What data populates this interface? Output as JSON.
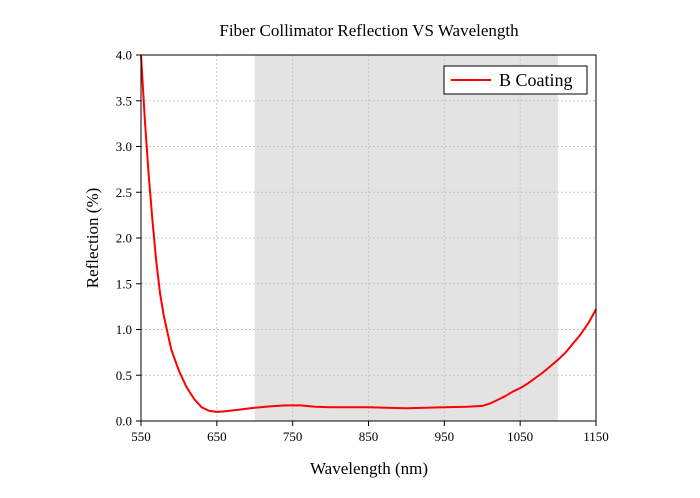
{
  "chart_data": {
    "type": "line",
    "title": "Fiber Collimator Reflection VS Wavelength",
    "xlabel": "Wavelength (nm)",
    "ylabel": "Reflection (%)",
    "xlim": [
      550,
      1150
    ],
    "ylim": [
      0,
      4.0
    ],
    "x_ticks": [
      550,
      650,
      750,
      850,
      950,
      1050,
      1150
    ],
    "y_ticks": [
      "0.0",
      "0.5",
      "1.0",
      "1.5",
      "2.0",
      "2.5",
      "3.0",
      "3.5",
      "4.0"
    ],
    "grid": true,
    "shaded_band": [
      700,
      1100
    ],
    "legend_position": "top-right",
    "series": [
      {
        "name": "B Coating",
        "color": "#ff0000",
        "x": [
          550,
          555,
          560,
          565,
          570,
          575,
          580,
          590,
          600,
          610,
          620,
          630,
          640,
          650,
          660,
          670,
          680,
          690,
          700,
          720,
          740,
          760,
          780,
          800,
          850,
          900,
          950,
          980,
          1000,
          1010,
          1020,
          1030,
          1040,
          1050,
          1060,
          1070,
          1080,
          1090,
          1100,
          1110,
          1120,
          1130,
          1140,
          1150
        ],
        "y": [
          4.0,
          3.3,
          2.7,
          2.2,
          1.75,
          1.4,
          1.15,
          0.78,
          0.55,
          0.37,
          0.24,
          0.15,
          0.11,
          0.1,
          0.105,
          0.115,
          0.125,
          0.135,
          0.145,
          0.16,
          0.17,
          0.17,
          0.155,
          0.15,
          0.15,
          0.14,
          0.15,
          0.155,
          0.165,
          0.19,
          0.23,
          0.27,
          0.32,
          0.36,
          0.41,
          0.47,
          0.53,
          0.6,
          0.67,
          0.75,
          0.85,
          0.95,
          1.07,
          1.22
        ]
      }
    ]
  }
}
